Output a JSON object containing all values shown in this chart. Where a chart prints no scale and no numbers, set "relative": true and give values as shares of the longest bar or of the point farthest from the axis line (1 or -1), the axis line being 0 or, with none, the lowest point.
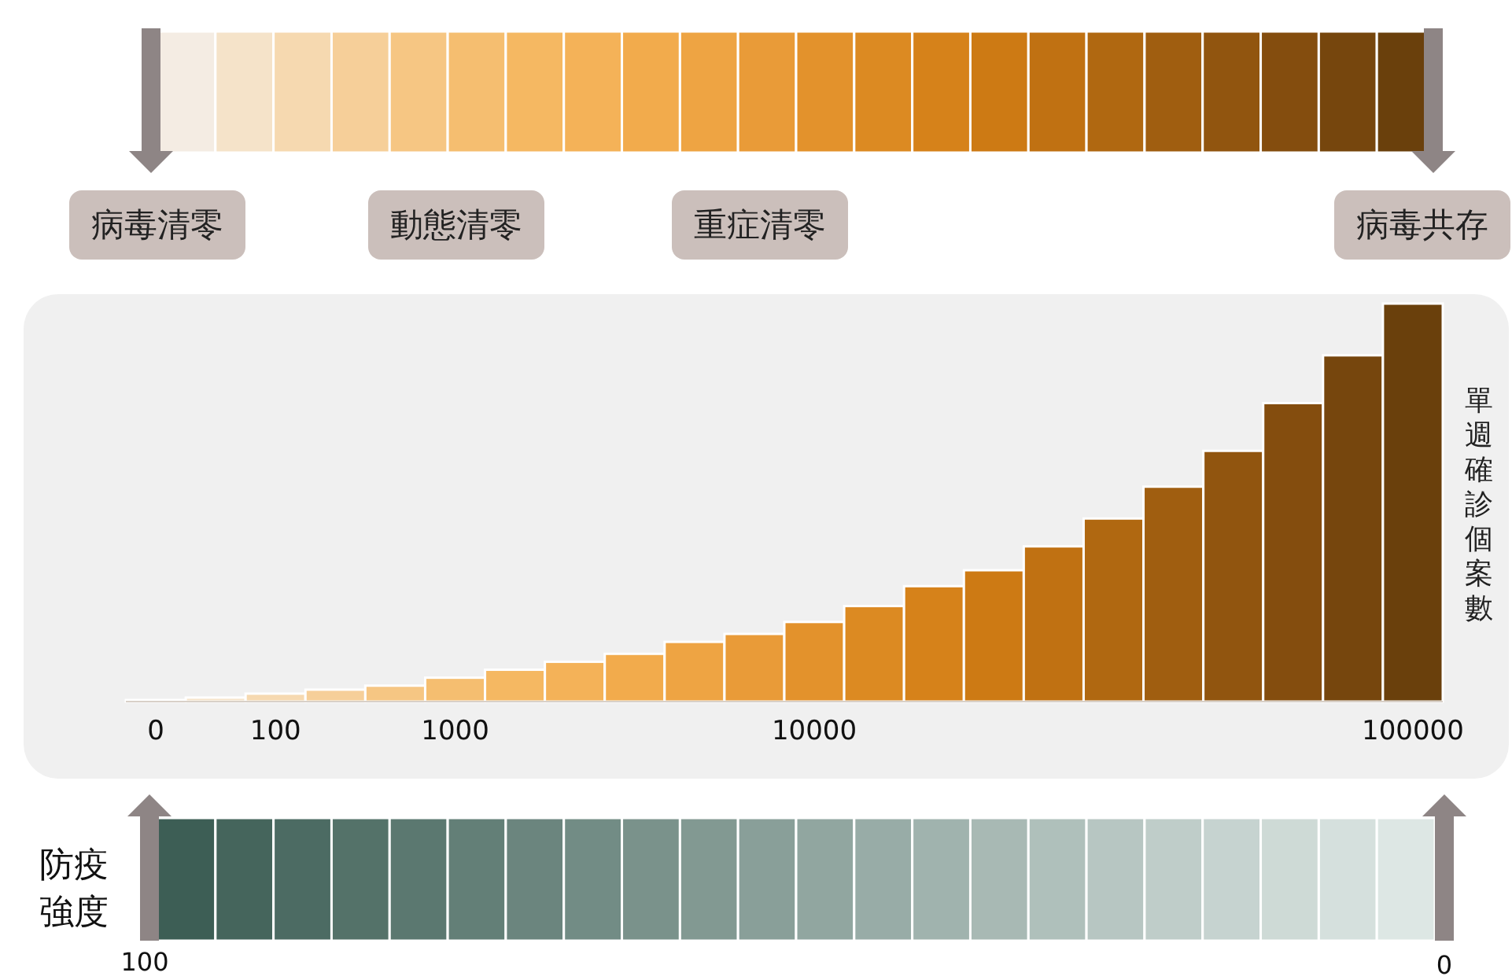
{
  "chart_data": {
    "type": "bar",
    "relative": true,
    "ylabel": "單週確診個案數",
    "categories": [
      "0",
      null,
      "100",
      null,
      null,
      "1000",
      null,
      null,
      null,
      null,
      null,
      "10000",
      null,
      null,
      null,
      null,
      null,
      null,
      null,
      null,
      null,
      "100000"
    ],
    "values": [
      0.004,
      0.01,
      0.02,
      0.03,
      0.04,
      0.06,
      0.08,
      0.1,
      0.12,
      0.15,
      0.17,
      0.2,
      0.24,
      0.29,
      0.33,
      0.39,
      0.46,
      0.54,
      0.63,
      0.75,
      0.87,
      1
    ],
    "colors": [
      "#f4ece3",
      "#f5e3c9",
      "#f6d9b0",
      "#f6cf99",
      "#f6c683",
      "#f5be70",
      "#f5b862",
      "#f4b258",
      "#f2ab4c",
      "#eea443",
      "#e99b38",
      "#e3922c",
      "#dc8a22",
      "#d6821a",
      "#cd7a14",
      "#c07112",
      "#b06811",
      "#a05e10",
      "#91550f",
      "#844d0e",
      "#76460d",
      "#6a400c"
    ],
    "annotations": [
      "病毒清零",
      "動態清零",
      "重症清零",
      "病毒共存",
      "防疫強度",
      "100",
      "0"
    ]
  }
}
